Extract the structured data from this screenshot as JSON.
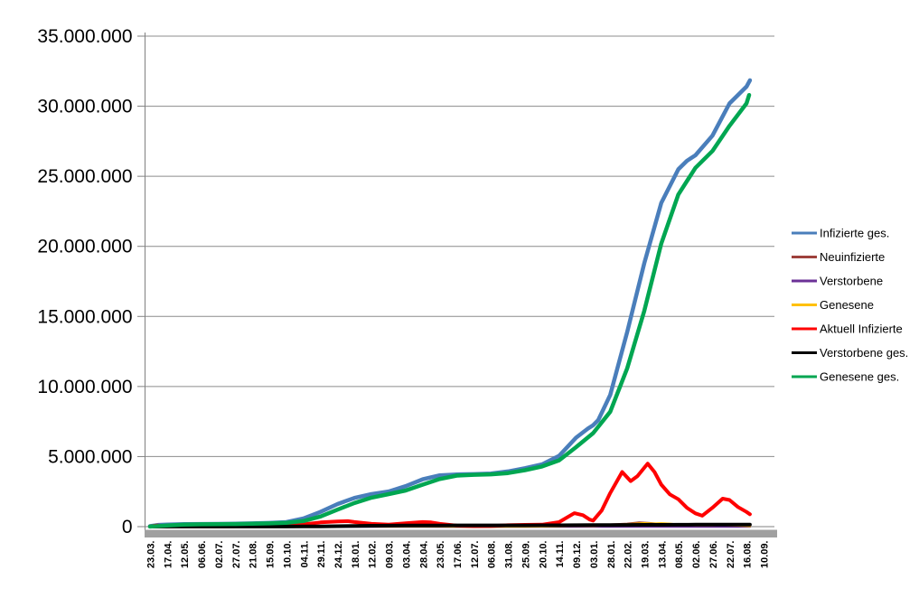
{
  "chart_data": {
    "type": "line",
    "title": "",
    "grid": true,
    "legend_position": "right",
    "y_axis": {
      "min": 0,
      "max": 35000000,
      "tick_interval": 5000000,
      "tick_labels": [
        "0",
        "5.000.000",
        "10.000.000",
        "15.000.000",
        "20.000.000",
        "25.000.000",
        "30.000.000",
        "35.000.000"
      ]
    },
    "x_axis": {
      "tick_labels": [
        "23.03.",
        "17.04.",
        "12.05.",
        "06.06.",
        "02.07.",
        "27.07.",
        "21.08.",
        "15.09.",
        "10.10.",
        "04.11.",
        "29.11.",
        "24.12.",
        "18.01.",
        "12.02.",
        "09.03.",
        "03.04.",
        "28.04.",
        "23.05.",
        "17.06.",
        "12.07.",
        "06.08.",
        "31.08.",
        "25.09.",
        "20.10.",
        "14.11.",
        "09.12.",
        "03.01.",
        "28.01.",
        "22.02.",
        "19.03.",
        "13.04.",
        "08.05.",
        "02.06.",
        "27.06.",
        "22.07.",
        "16.08.",
        "10.09."
      ]
    },
    "colors": {
      "gridline": "#8c8c8c",
      "axis": "#808080",
      "axis_band": "#a0a0a0",
      "text": "#000000"
    },
    "series": [
      {
        "name": "Infizierte ges.",
        "color": "#4a7ebb",
        "width": 4.5,
        "points": [
          [
            0,
            30000
          ],
          [
            0.5,
            120000
          ],
          [
            1,
            140000
          ],
          [
            2,
            172000
          ],
          [
            3,
            184000
          ],
          [
            4,
            196000
          ],
          [
            5,
            206000
          ],
          [
            6,
            232000
          ],
          [
            7,
            263000
          ],
          [
            8,
            320000
          ],
          [
            9,
            577000
          ],
          [
            10,
            1053000
          ],
          [
            11,
            1610000
          ],
          [
            12,
            2050000
          ],
          [
            13,
            2320000
          ],
          [
            14,
            2510000
          ],
          [
            15,
            2885000
          ],
          [
            16,
            3380000
          ],
          [
            17,
            3662000
          ],
          [
            18,
            3727000
          ],
          [
            19,
            3742000
          ],
          [
            20,
            3790000
          ],
          [
            21,
            3940000
          ],
          [
            22,
            4170000
          ],
          [
            23,
            4440000
          ],
          [
            24,
            5050000
          ],
          [
            25,
            6350000
          ],
          [
            25.7,
            7000000
          ],
          [
            26,
            7240000
          ],
          [
            26.3,
            7600000
          ],
          [
            27,
            9400000
          ],
          [
            28,
            13900000
          ],
          [
            29,
            18800000
          ],
          [
            30,
            23100000
          ],
          [
            31,
            25500000
          ],
          [
            31.5,
            26100000
          ],
          [
            32,
            26500000
          ],
          [
            33,
            27900000
          ],
          [
            34,
            30200000
          ],
          [
            35,
            31400000
          ],
          [
            35.2,
            31850000
          ]
        ]
      },
      {
        "name": "Neuinfizierte",
        "color": "#9e413c",
        "width": 2.5,
        "points": [
          [
            0,
            4000
          ],
          [
            1,
            3000
          ],
          [
            2,
            1000
          ],
          [
            3,
            500
          ],
          [
            4,
            500
          ],
          [
            5,
            800
          ],
          [
            6,
            1500
          ],
          [
            7,
            2000
          ],
          [
            8,
            4000
          ],
          [
            9,
            18000
          ],
          [
            10,
            20000
          ],
          [
            11,
            25000
          ],
          [
            12,
            15000
          ],
          [
            13,
            8000
          ],
          [
            14,
            10000
          ],
          [
            15,
            16000
          ],
          [
            16,
            20000
          ],
          [
            17,
            8000
          ],
          [
            18,
            2000
          ],
          [
            19,
            1000
          ],
          [
            20,
            3000
          ],
          [
            21,
            8000
          ],
          [
            22,
            9000
          ],
          [
            23,
            12000
          ],
          [
            24,
            40000
          ],
          [
            25,
            60000
          ],
          [
            26,
            45000
          ],
          [
            27,
            150000
          ],
          [
            28,
            200000
          ],
          [
            28.7,
            290000
          ],
          [
            29.3,
            250000
          ],
          [
            30,
            180000
          ],
          [
            31,
            90000
          ],
          [
            32,
            50000
          ],
          [
            33,
            110000
          ],
          [
            33.8,
            130000
          ],
          [
            34.5,
            70000
          ],
          [
            35.2,
            35000
          ]
        ]
      },
      {
        "name": "Verstorbene",
        "color": "#6b3197",
        "width": 2.5,
        "points": [
          [
            0,
            300
          ],
          [
            12,
            900
          ],
          [
            24,
            400
          ],
          [
            29,
            1000
          ],
          [
            35.2,
            300
          ]
        ]
      },
      {
        "name": "Genesene",
        "color": "#ffc000",
        "width": 2.5,
        "points": [
          [
            0,
            2000
          ],
          [
            5,
            1000
          ],
          [
            9,
            10000
          ],
          [
            10,
            17000
          ],
          [
            11,
            22000
          ],
          [
            12,
            18000
          ],
          [
            13,
            10000
          ],
          [
            14,
            9000
          ],
          [
            15,
            14000
          ],
          [
            16,
            18000
          ],
          [
            17,
            12000
          ],
          [
            18,
            4000
          ],
          [
            19,
            1500
          ],
          [
            20,
            2500
          ],
          [
            21,
            6000
          ],
          [
            22,
            8000
          ],
          [
            23,
            10000
          ],
          [
            24,
            30000
          ],
          [
            25,
            55000
          ],
          [
            26,
            50000
          ],
          [
            27,
            110000
          ],
          [
            28,
            170000
          ],
          [
            29,
            240000
          ],
          [
            29.5,
            215000
          ],
          [
            30,
            235000
          ],
          [
            30.5,
            200000
          ],
          [
            31,
            150000
          ],
          [
            32,
            100000
          ],
          [
            33,
            100000
          ],
          [
            33.5,
            120000
          ],
          [
            34,
            100000
          ],
          [
            35,
            55000
          ],
          [
            35.2,
            40000
          ]
        ]
      },
      {
        "name": "Aktuell Infizierte",
        "color": "#ff0000",
        "width": 4,
        "points": [
          [
            0,
            20000
          ],
          [
            0.35,
            75000
          ],
          [
            1,
            52000
          ],
          [
            2,
            22000
          ],
          [
            3,
            10000
          ],
          [
            4,
            8000
          ],
          [
            5,
            11000
          ],
          [
            6,
            18000
          ],
          [
            7,
            25000
          ],
          [
            8,
            39000
          ],
          [
            9,
            160000
          ],
          [
            10,
            300000
          ],
          [
            11,
            370000
          ],
          [
            11.6,
            390000
          ],
          [
            12,
            330000
          ],
          [
            13,
            200000
          ],
          [
            14,
            150000
          ],
          [
            15,
            240000
          ],
          [
            16,
            330000
          ],
          [
            16.5,
            300000
          ],
          [
            17,
            200000
          ],
          [
            18,
            70000
          ],
          [
            19,
            30000
          ],
          [
            20,
            40000
          ],
          [
            21,
            100000
          ],
          [
            22,
            130000
          ],
          [
            23,
            140000
          ],
          [
            24,
            320000
          ],
          [
            24.9,
            960000
          ],
          [
            25.4,
            820000
          ],
          [
            25.8,
            500000
          ],
          [
            26,
            430000
          ],
          [
            26.5,
            1150000
          ],
          [
            27,
            2400000
          ],
          [
            27.7,
            3900000
          ],
          [
            28.2,
            3250000
          ],
          [
            28.6,
            3600000
          ],
          [
            29.2,
            4500000
          ],
          [
            29.6,
            3900000
          ],
          [
            30,
            3000000
          ],
          [
            30.5,
            2300000
          ],
          [
            31,
            1950000
          ],
          [
            31.5,
            1350000
          ],
          [
            32,
            950000
          ],
          [
            32.4,
            780000
          ],
          [
            33,
            1350000
          ],
          [
            33.6,
            2000000
          ],
          [
            34,
            1900000
          ],
          [
            34.5,
            1400000
          ],
          [
            35,
            1050000
          ],
          [
            35.2,
            880000
          ]
        ]
      },
      {
        "name": "Verstorbene ges.",
        "color": "#000000",
        "width": 4,
        "points": [
          [
            0,
            200
          ],
          [
            2,
            7000
          ],
          [
            4,
            9000
          ],
          [
            6,
            9300
          ],
          [
            8,
            9600
          ],
          [
            9,
            11000
          ],
          [
            10,
            16000
          ],
          [
            11,
            30000
          ],
          [
            12,
            47000
          ],
          [
            13,
            64000
          ],
          [
            14,
            72000
          ],
          [
            15,
            77000
          ],
          [
            16,
            82000
          ],
          [
            17,
            87000
          ],
          [
            18,
            90000
          ],
          [
            19,
            91000
          ],
          [
            20,
            91800
          ],
          [
            21,
            92300
          ],
          [
            22,
            93000
          ],
          [
            23,
            95000
          ],
          [
            24,
            98000
          ],
          [
            25,
            104000
          ],
          [
            26,
            112000
          ],
          [
            27,
            117500
          ],
          [
            28,
            121000
          ],
          [
            29,
            126000
          ],
          [
            30,
            132000
          ],
          [
            31,
            136000
          ],
          [
            32,
            139000
          ],
          [
            33,
            140500
          ],
          [
            34,
            142500
          ],
          [
            35,
            145000
          ],
          [
            35.2,
            146000
          ]
        ]
      },
      {
        "name": "Genesene ges.",
        "color": "#00a651",
        "width": 4.5,
        "points": [
          [
            0,
            5000
          ],
          [
            0.5,
            40000
          ],
          [
            1,
            85000
          ],
          [
            2,
            148000
          ],
          [
            3,
            169000
          ],
          [
            4,
            181000
          ],
          [
            5,
            190000
          ],
          [
            6,
            207000
          ],
          [
            7,
            233000
          ],
          [
            8,
            276000
          ],
          [
            9,
            400000
          ],
          [
            10,
            720000
          ],
          [
            11,
            1210000
          ],
          [
            12,
            1690000
          ],
          [
            13,
            2070000
          ],
          [
            14,
            2320000
          ],
          [
            15,
            2580000
          ],
          [
            16,
            3000000
          ],
          [
            17,
            3400000
          ],
          [
            18,
            3640000
          ],
          [
            19,
            3700000
          ],
          [
            20,
            3730000
          ],
          [
            21,
            3820000
          ],
          [
            22,
            4030000
          ],
          [
            23,
            4290000
          ],
          [
            24,
            4730000
          ],
          [
            25,
            5670000
          ],
          [
            26,
            6670000
          ],
          [
            27,
            8200000
          ],
          [
            28,
            11300000
          ],
          [
            29,
            15400000
          ],
          [
            30,
            20200000
          ],
          [
            31,
            23700000
          ],
          [
            32,
            25600000
          ],
          [
            33,
            26800000
          ],
          [
            34,
            28600000
          ],
          [
            35,
            30200000
          ],
          [
            35.15,
            30800000
          ]
        ]
      }
    ]
  }
}
